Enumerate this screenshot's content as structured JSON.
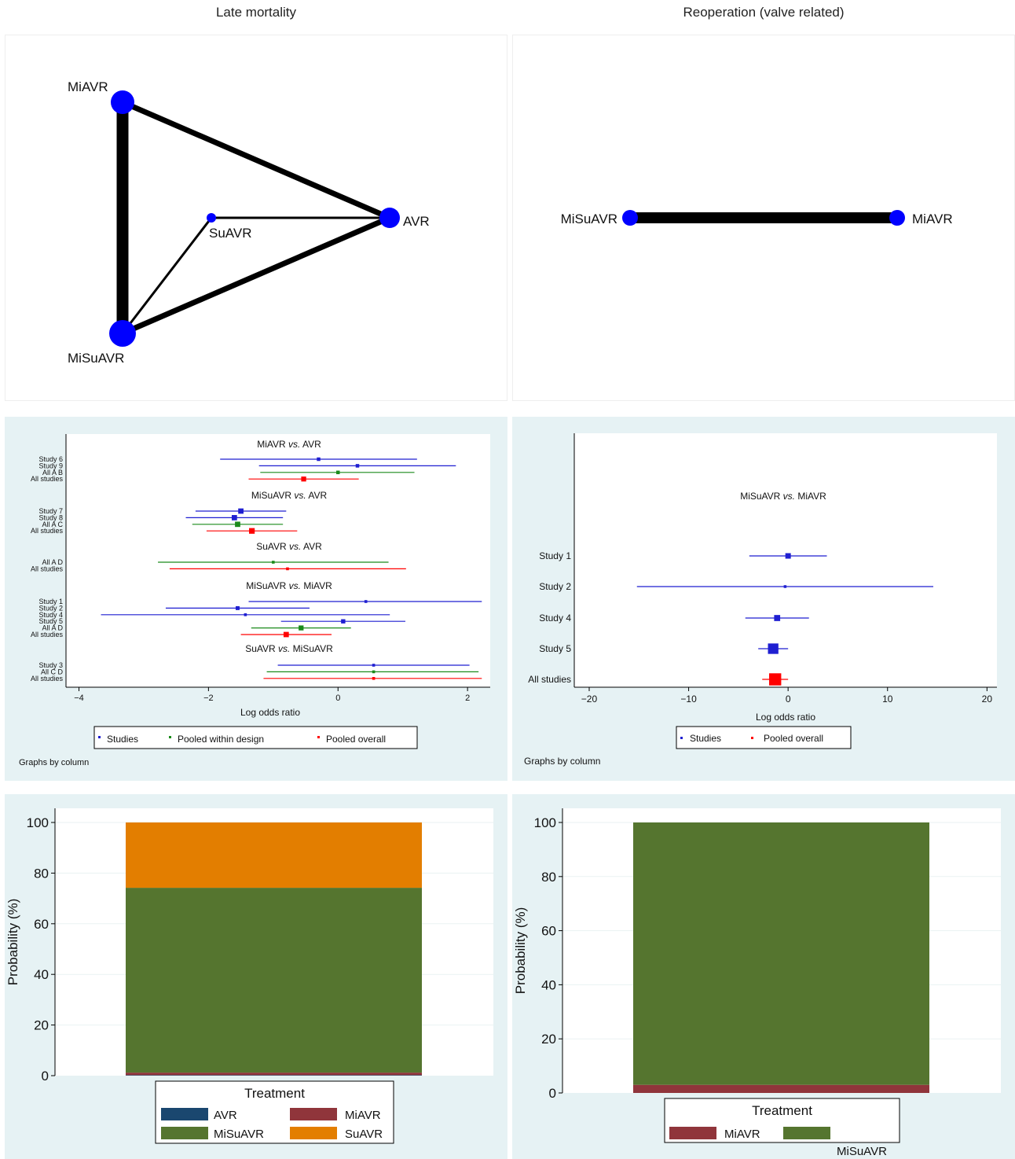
{
  "titles": {
    "left": "Late mortality",
    "right": "Reoperation (valve related)"
  },
  "network_left": {
    "nodes": [
      {
        "id": "MiAVR",
        "label": "MiAVR"
      },
      {
        "id": "AVR",
        "label": "AVR"
      },
      {
        "id": "SuAVR",
        "label": "SuAVR"
      },
      {
        "id": "MiSuAVR",
        "label": "MiSuAVR"
      }
    ],
    "edges": [
      {
        "from": "MiAVR",
        "to": "MiSuAVR",
        "weight": "thickest"
      },
      {
        "from": "MiAVR",
        "to": "AVR",
        "weight": "thick"
      },
      {
        "from": "MiSuAVR",
        "to": "AVR",
        "weight": "thick"
      },
      {
        "from": "SuAVR",
        "to": "AVR",
        "weight": "thin"
      },
      {
        "from": "SuAVR",
        "to": "MiSuAVR",
        "weight": "thin"
      }
    ]
  },
  "network_right": {
    "nodes": [
      {
        "id": "MiSuAVR",
        "label": "MiSuAVR"
      },
      {
        "id": "MiAVR",
        "label": "MiAVR"
      }
    ],
    "edges": [
      {
        "from": "MiSuAVR",
        "to": "MiAVR",
        "weight": "thick"
      }
    ]
  },
  "colors": {
    "node": "#0000ff",
    "studies": "#1f1fd1",
    "pooled_design": "#1a8a1a",
    "pooled_overall": "#ff0000",
    "forest_bg": "#e6f2f4",
    "avr": "#1a476f",
    "miavr": "#90353b",
    "misuavr": "#55752f",
    "suavr": "#e37e00"
  },
  "chart_data": [
    {
      "type": "forest",
      "xlabel": "Log odds ratio",
      "xlim": [
        -4.2,
        2.35
      ],
      "xticks": [
        -4,
        -2,
        0,
        2
      ],
      "xtick_labels": [
        "−4",
        "−2",
        "0",
        "2"
      ],
      "note": "Graphs by column",
      "legend": [
        "Studies",
        "Pooled within design",
        "Pooled overall"
      ],
      "groups": [
        {
          "title": "MiAVR",
          "title_vs": "vs.",
          "title_b": "AVR",
          "rows": [
            {
              "label": "Study 6",
              "est": -0.3,
              "lo": -1.82,
              "hi": 1.22,
              "kind": "study",
              "size": 1
            },
            {
              "label": "Study 9",
              "est": 0.3,
              "lo": -1.22,
              "hi": 1.82,
              "kind": "study",
              "size": 1
            },
            {
              "label": "All A B",
              "est": 0.0,
              "lo": -1.2,
              "hi": 1.18,
              "kind": "design",
              "size": 1
            },
            {
              "label": "All studies",
              "est": -0.53,
              "lo": -1.38,
              "hi": 0.32,
              "kind": "overall",
              "size": 1.4
            }
          ]
        },
        {
          "title": "MiSuAVR",
          "title_vs": "vs.",
          "title_b": "AVR",
          "rows": [
            {
              "label": "Study 7",
              "est": -1.5,
              "lo": -2.2,
              "hi": -0.8,
              "kind": "study",
              "size": 1.5
            },
            {
              "label": "Study 8",
              "est": -1.6,
              "lo": -2.35,
              "hi": -0.85,
              "kind": "study",
              "size": 1.5
            },
            {
              "label": "All A C",
              "est": -1.55,
              "lo": -2.25,
              "hi": -0.85,
              "kind": "design",
              "size": 1.5
            },
            {
              "label": "All studies",
              "est": -1.33,
              "lo": -2.03,
              "hi": -0.63,
              "kind": "overall",
              "size": 1.6
            }
          ]
        },
        {
          "title": "SuAVR",
          "title_vs": "vs.",
          "title_b": "AVR",
          "rows": [
            {
              "label": "All A D",
              "est": -1.0,
              "lo": -2.78,
              "hi": 0.78,
              "kind": "design",
              "size": 0.8
            },
            {
              "label": "All studies",
              "est": -0.78,
              "lo": -2.6,
              "hi": 1.05,
              "kind": "overall",
              "size": 0.8
            }
          ]
        },
        {
          "title": "MiSuAVR",
          "title_vs": "vs.",
          "title_b": "MiAVR",
          "rows": [
            {
              "label": "Study 1",
              "est": 0.43,
              "lo": -1.38,
              "hi": 2.22,
              "kind": "study",
              "size": 0.8
            },
            {
              "label": "Study 2",
              "est": -1.55,
              "lo": -2.66,
              "hi": -0.44,
              "kind": "study",
              "size": 1.1
            },
            {
              "label": "Study 4",
              "est": -1.43,
              "lo": -3.66,
              "hi": 0.8,
              "kind": "study",
              "size": 0.8
            },
            {
              "label": "Study 5",
              "est": 0.08,
              "lo": -0.88,
              "hi": 1.04,
              "kind": "study",
              "size": 1.2
            },
            {
              "label": "All A D",
              "est": -0.57,
              "lo": -1.34,
              "hi": 0.2,
              "kind": "design",
              "size": 1.4
            },
            {
              "label": "All studies",
              "est": -0.8,
              "lo": -1.5,
              "hi": -0.1,
              "kind": "overall",
              "size": 1.5
            }
          ]
        },
        {
          "title": "SuAVR",
          "title_vs": "vs.",
          "title_b": "MiSuAVR",
          "rows": [
            {
              "label": "Study 3",
              "est": 0.55,
              "lo": -0.93,
              "hi": 2.03,
              "kind": "study",
              "size": 0.8
            },
            {
              "label": "All C D",
              "est": 0.55,
              "lo": -1.1,
              "hi": 2.17,
              "kind": "design",
              "size": 0.8
            },
            {
              "label": "All studies",
              "est": 0.55,
              "lo": -1.15,
              "hi": 2.22,
              "kind": "overall",
              "size": 0.8
            }
          ]
        }
      ]
    },
    {
      "type": "forest",
      "xlabel": "Log odds ratio",
      "xlim": [
        -21.5,
        21
      ],
      "xticks": [
        -20,
        -10,
        0,
        10,
        20
      ],
      "xtick_labels": [
        "−20",
        "−10",
        "0",
        "10",
        "20"
      ],
      "note": "Graphs by column",
      "legend": [
        "Studies",
        "Pooled overall"
      ],
      "groups": [
        {
          "title": "MiSuAVR",
          "title_vs": "vs.",
          "title_b": "MiAVR",
          "rows": [
            {
              "label": "Study 1",
              "est": 0.0,
              "lo": -3.9,
              "hi": 3.9,
              "kind": "study",
              "size": 1
            },
            {
              "label": "Study 2",
              "est": -0.3,
              "lo": -15.2,
              "hi": 14.6,
              "kind": "study",
              "size": 0.5
            },
            {
              "label": "Study 4",
              "est": -1.1,
              "lo": -4.3,
              "hi": 2.1,
              "kind": "study",
              "size": 1.1
            },
            {
              "label": "Study 5",
              "est": -1.5,
              "lo": -3.0,
              "hi": 0.0,
              "kind": "study",
              "size": 1.9
            },
            {
              "label": "All studies",
              "est": -1.3,
              "lo": -2.6,
              "hi": 0.0,
              "kind": "overall",
              "size": 2.2
            }
          ]
        }
      ]
    },
    {
      "type": "bar",
      "stacked": true,
      "ylabel": "Probability (%)",
      "ylim": [
        0,
        100
      ],
      "yticks": [
        0,
        20,
        40,
        60,
        80,
        100
      ],
      "legend_title": "Treatment",
      "series": [
        {
          "name": "AVR",
          "value": 0.2
        },
        {
          "name": "MiAVR",
          "value": 1.0
        },
        {
          "name": "MiSuAVR",
          "value": 73.0
        },
        {
          "name": "SuAVR",
          "value": 25.8
        }
      ]
    },
    {
      "type": "bar",
      "stacked": true,
      "ylabel": "Probability (%)",
      "ylim": [
        0,
        100
      ],
      "yticks": [
        0,
        20,
        40,
        60,
        80,
        100
      ],
      "legend_title": "Treatment",
      "series": [
        {
          "name": "MiAVR",
          "value": 3.0
        },
        {
          "name": "MiSuAVR",
          "value": 97.0
        }
      ]
    }
  ]
}
